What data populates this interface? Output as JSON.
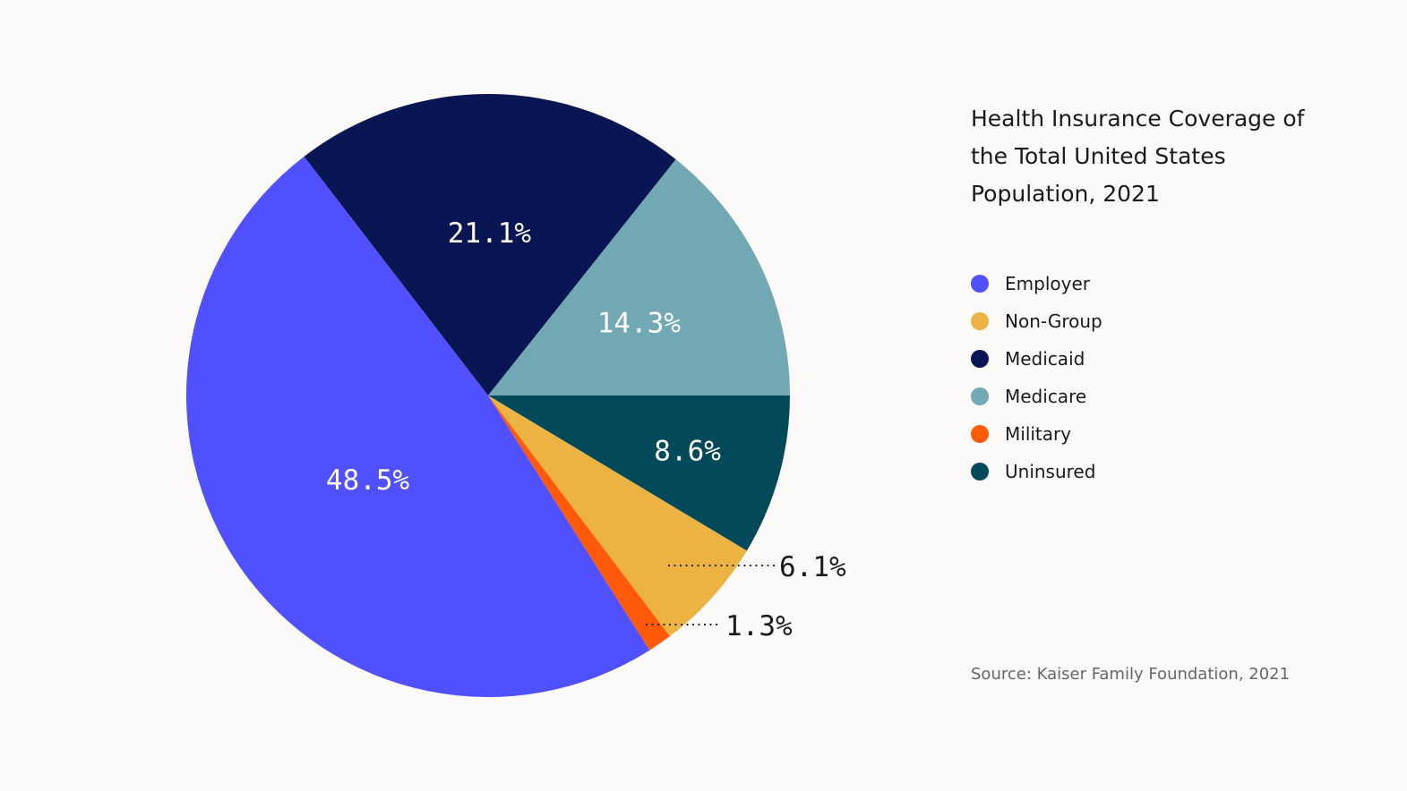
{
  "chart_data": {
    "type": "pie",
    "title": "Health Insurance Coverage of the Total United States Population, 2021",
    "slices": [
      {
        "name": "Uninsured",
        "value": 8.6,
        "label": "8.6%",
        "color": "#024A59",
        "label_inside": true
      },
      {
        "name": "Non-Group",
        "value": 6.1,
        "label": "6.1%",
        "color": "#EDB342",
        "label_inside": false
      },
      {
        "name": "Military",
        "value": 1.3,
        "label": "1.3%",
        "color": "#FF5A0A",
        "label_inside": false
      },
      {
        "name": "Employer",
        "value": 48.5,
        "label": "48.5%",
        "color": "#5050FF",
        "label_inside": true
      },
      {
        "name": "Medicaid",
        "value": 21.1,
        "label": "21.1%",
        "color": "#0A1554",
        "label_inside": true
      },
      {
        "name": "Medicare",
        "value": 14.3,
        "label": "14.3%",
        "color": "#72A7B4",
        "label_inside": true
      }
    ],
    "legend": [
      "Employer",
      "Non-Group",
      "Medicaid",
      "Medicare",
      "Military",
      "Uninsured"
    ],
    "legend_colors": [
      "#5050FF",
      "#EDB342",
      "#0A1554",
      "#72A7B4",
      "#FF5A0A",
      "#024A59"
    ],
    "legend_position": "right",
    "source": "Source: Kaiser Family Foundation, 2021"
  }
}
